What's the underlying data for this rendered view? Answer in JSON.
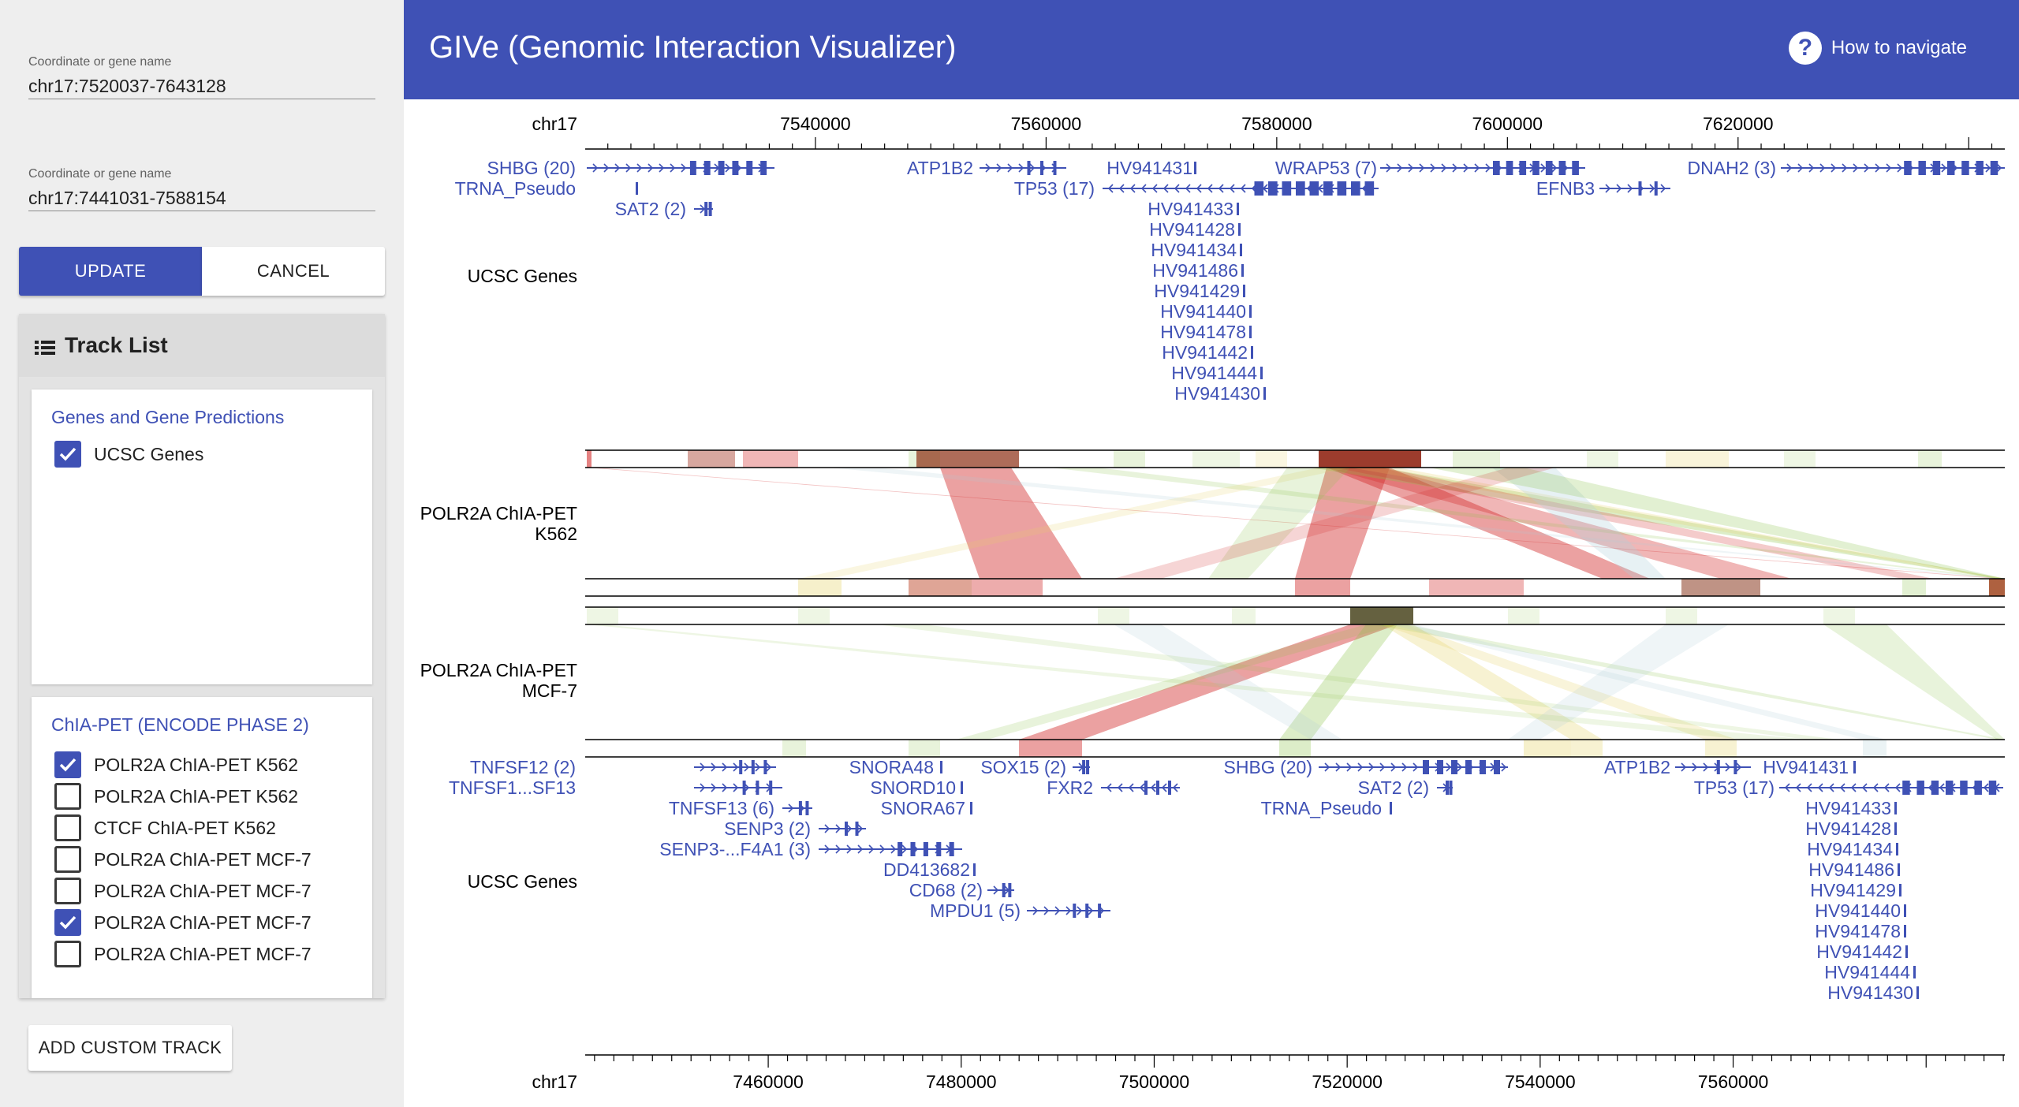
{
  "sidebar": {
    "coord1": {
      "label": "Coordinate or gene name",
      "value": "chr17:7520037-7643128"
    },
    "coord2": {
      "label": "Coordinate or gene name",
      "value": "chr17:7441031-7588154"
    },
    "update_label": "UPDATE",
    "cancel_label": "CANCEL",
    "track_list_title": "Track List",
    "groups": [
      {
        "title": "Genes and Gene Predictions",
        "tracks": [
          {
            "label": "UCSC Genes",
            "checked": true
          }
        ]
      },
      {
        "title": "ChIA-PET (ENCODE PHASE 2)",
        "tracks": [
          {
            "label": "POLR2A ChIA-PET K562",
            "checked": true
          },
          {
            "label": "POLR2A ChIA-PET K562",
            "checked": false
          },
          {
            "label": "CTCF ChIA-PET K562",
            "checked": false
          },
          {
            "label": "POLR2A ChIA-PET MCF-7",
            "checked": false
          },
          {
            "label": "POLR2A ChIA-PET MCF-7",
            "checked": false
          },
          {
            "label": "POLR2A ChIA-PET MCF-7",
            "checked": true
          },
          {
            "label": "POLR2A ChIA-PET MCF-7",
            "checked": false
          }
        ]
      }
    ],
    "add_custom_label": "ADD CUSTOM TRACK"
  },
  "header": {
    "title": "GIVe (Genomic Interaction Visualizer)",
    "help_label": "How to navigate"
  },
  "colors": {
    "primary": "#3f51b5",
    "strong": "#d32f2f",
    "mid": "#e6d36a",
    "weak": "#8bc34a",
    "weaker": "#b0cfd9"
  },
  "viewer": {
    "top_ruler": {
      "chrom": "chr17",
      "ticks": [
        "7540000",
        "7560000",
        "7580000",
        "7600000",
        "7620000"
      ]
    },
    "bottom_ruler": {
      "chrom": "chr17",
      "ticks": [
        "7460000",
        "7480000",
        "7500000",
        "7520000",
        "7540000",
        "7560000"
      ]
    },
    "track_labels": {
      "genes_top": "UCSC Genes",
      "k562": [
        "POLR2A ChIA-PET",
        "K562"
      ],
      "mcf7": [
        "POLR2A ChIA-PET",
        "MCF-7"
      ],
      "genes_bottom": "UCSC Genes"
    },
    "top_genes": [
      "SHBG (20)",
      "TRNA_Pseudo",
      "SAT2 (2)",
      "ATP1B2",
      "HV941431",
      "TP53 (17)",
      "WRAP53 (7)",
      "EFNB3",
      "DNAH2 (3)",
      "HV941433",
      "HV941428",
      "HV941434",
      "HV941486",
      "HV941429",
      "HV941440",
      "HV941478",
      "HV941442",
      "HV941444",
      "HV941430"
    ],
    "bottom_genes": [
      "TNFSF12 (2)",
      "TNFSF1...SF13",
      "TNFSF13 (6)",
      "SENP3 (2)",
      "SENP3-...F4A1 (3)",
      "SNORA48",
      "SNORD10",
      "SNORA67",
      "DD413682",
      "CD68 (2)",
      "MPDU1 (5)",
      "SOX15 (2)",
      "FXR2",
      "SHBG (20)",
      "SAT2 (2)",
      "TRNA_Pseudo",
      "ATP1B2",
      "TP53 (17)",
      "HV941431",
      "HV941433",
      "HV941428",
      "HV941434",
      "HV941486",
      "HV941429",
      "HV941440",
      "HV941478",
      "HV941442",
      "HV941444",
      "HV941430"
    ]
  }
}
